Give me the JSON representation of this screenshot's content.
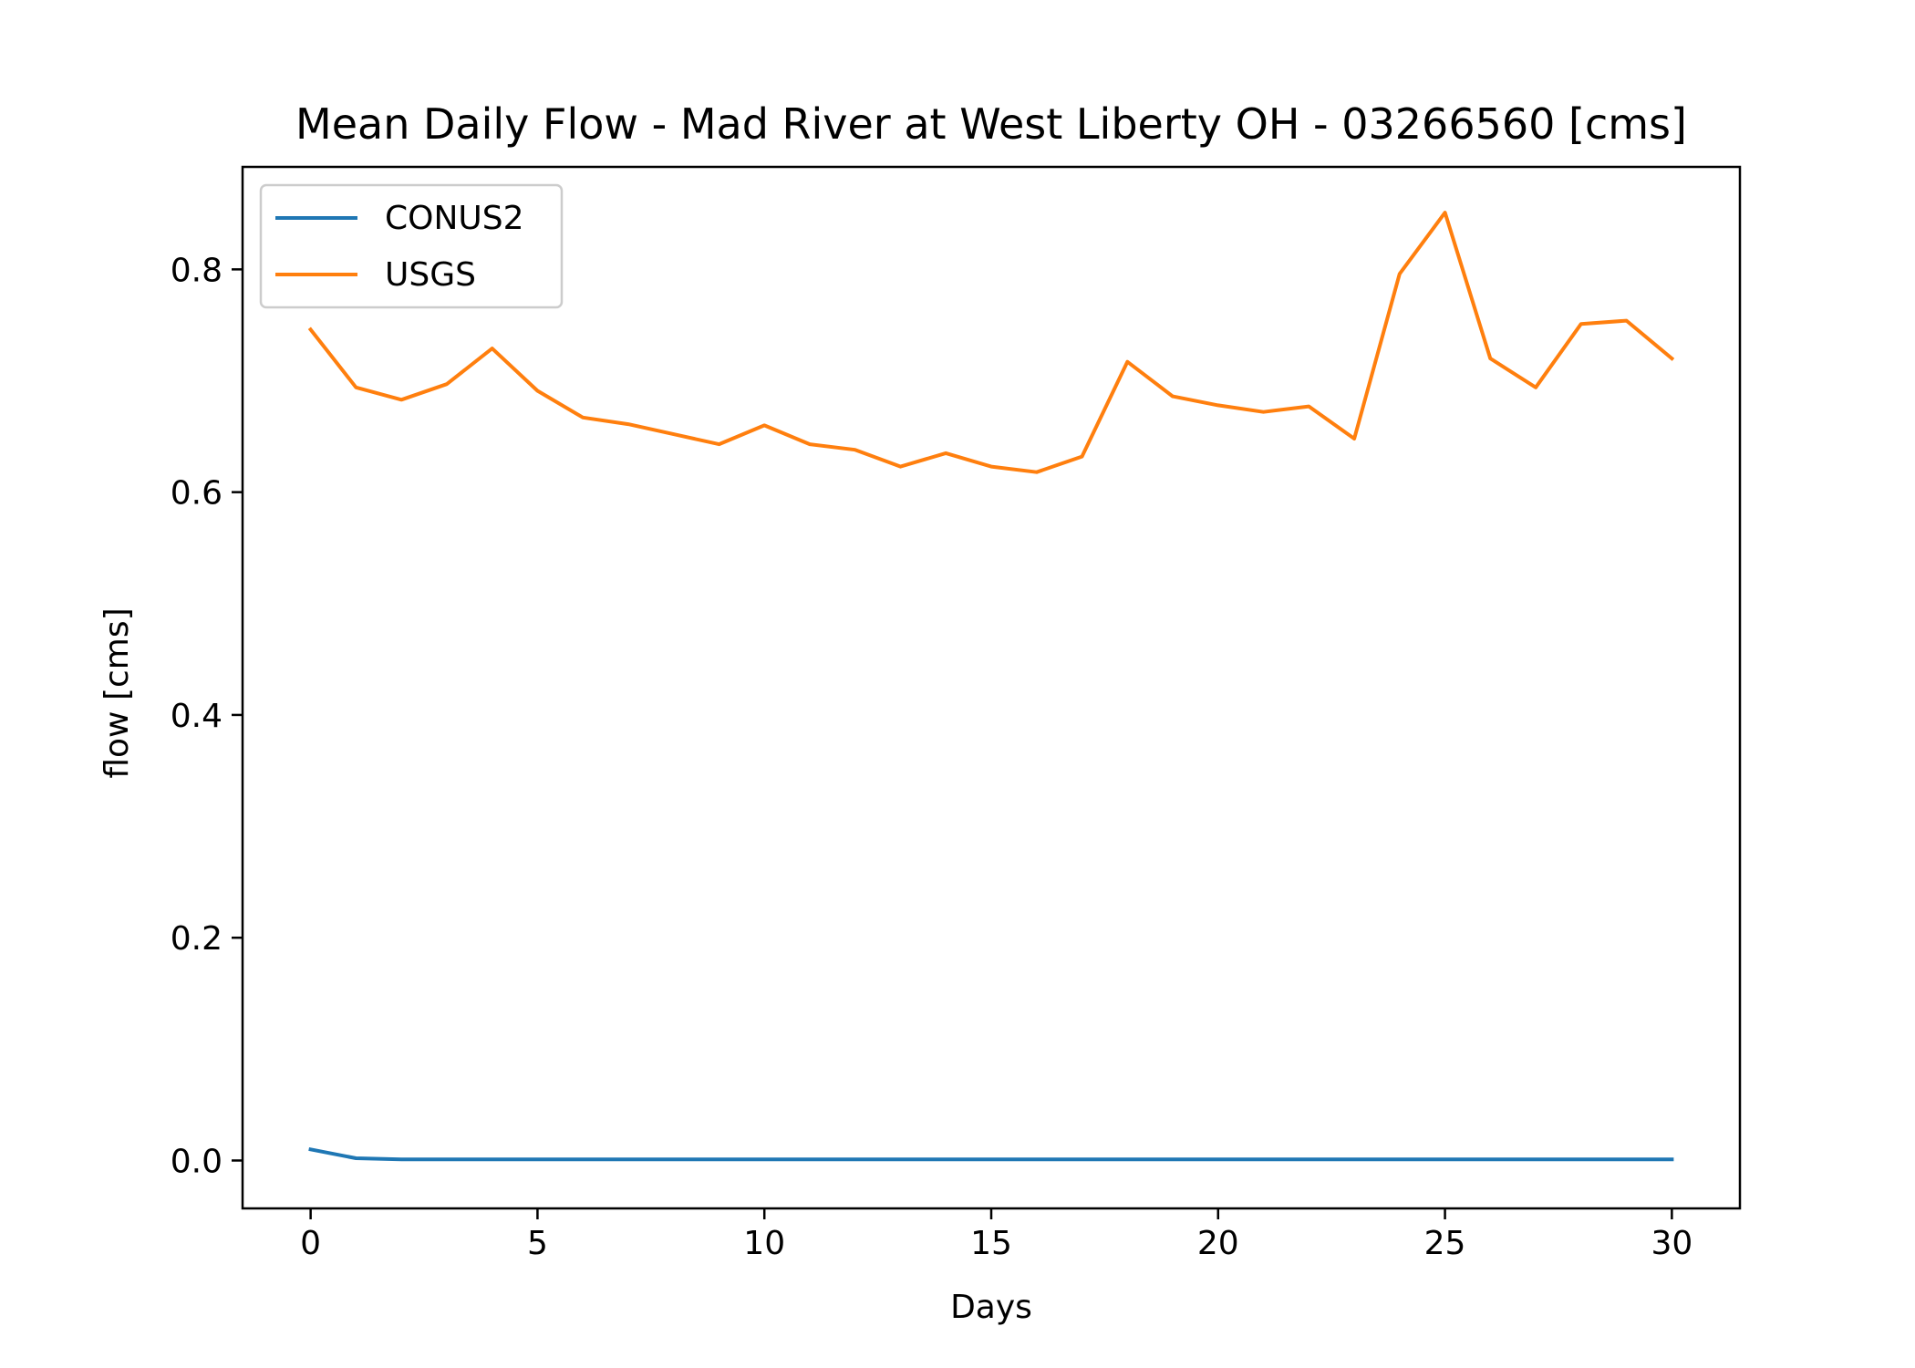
{
  "chart_data": {
    "type": "line",
    "title": "Mean Daily Flow - Mad River at West Liberty OH - 03266560 [cms]",
    "xlabel": "Days",
    "ylabel": "flow [cms]",
    "xlim": [
      -1.5,
      31.5
    ],
    "ylim": [
      -0.043,
      0.892
    ],
    "xticks": [
      0,
      5,
      10,
      15,
      20,
      25,
      30
    ],
    "xtick_labels": [
      "0",
      "5",
      "10",
      "15",
      "20",
      "25",
      "30"
    ],
    "yticks": [
      0.0,
      0.2,
      0.4,
      0.6,
      0.8
    ],
    "ytick_labels": [
      "0.0",
      "0.2",
      "0.4",
      "0.6",
      "0.8"
    ],
    "grid": false,
    "legend": "top-left",
    "x": [
      0,
      1,
      2,
      3,
      4,
      5,
      6,
      7,
      8,
      9,
      10,
      11,
      12,
      13,
      14,
      15,
      16,
      17,
      18,
      19,
      20,
      21,
      22,
      23,
      24,
      25,
      26,
      27,
      28,
      29,
      30
    ],
    "series": [
      {
        "name": "CONUS2",
        "color": "#1f77b4",
        "values": [
          0.01,
          0.002,
          0.001,
          0.001,
          0.001,
          0.001,
          0.001,
          0.001,
          0.001,
          0.001,
          0.001,
          0.001,
          0.001,
          0.001,
          0.001,
          0.001,
          0.001,
          0.001,
          0.001,
          0.001,
          0.001,
          0.001,
          0.001,
          0.001,
          0.001,
          0.001,
          0.001,
          0.001,
          0.001,
          0.001,
          0.001
        ]
      },
      {
        "name": "USGS",
        "color": "#ff7f0e",
        "values": [
          0.746,
          0.694,
          0.683,
          0.697,
          0.729,
          0.691,
          0.667,
          0.661,
          0.652,
          0.643,
          0.66,
          0.643,
          0.638,
          0.623,
          0.635,
          0.623,
          0.618,
          0.632,
          0.717,
          0.686,
          0.678,
          0.672,
          0.677,
          0.648,
          0.796,
          0.851,
          0.72,
          0.694,
          0.751,
          0.754,
          0.72
        ]
      }
    ]
  }
}
